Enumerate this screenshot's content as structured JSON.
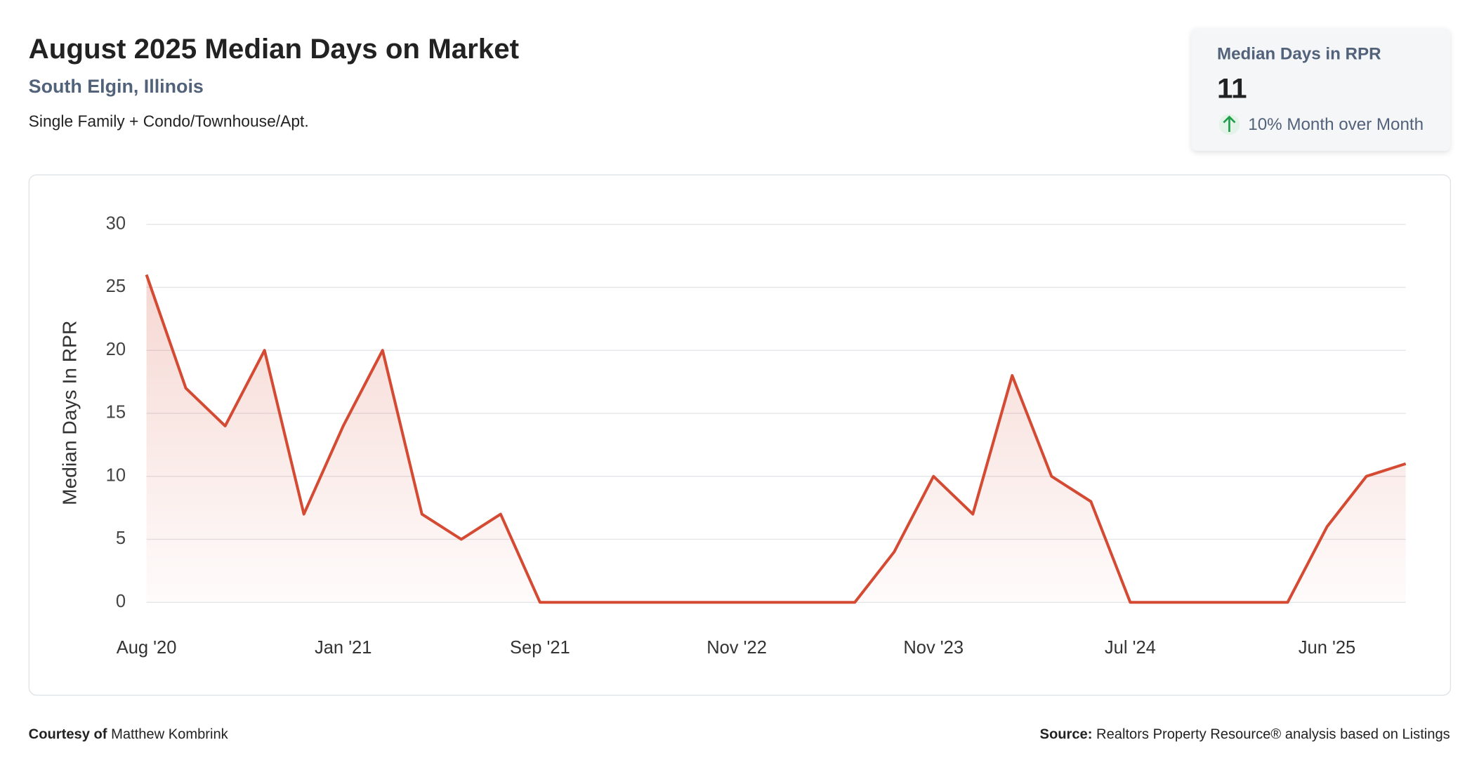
{
  "header": {
    "title": "August 2025 Median Days on Market",
    "location": "South Elgin, Illinois",
    "property_types": "Single Family + Condo/Townhouse/Apt."
  },
  "kpi": {
    "label": "Median Days in RPR",
    "value": "11",
    "change": "10% Month over Month"
  },
  "chart_data": {
    "type": "line",
    "y_label": "Median Days In RPR",
    "categories": [
      "Aug '20",
      null,
      null,
      null,
      null,
      "Jan '21",
      null,
      null,
      null,
      null,
      "Sep '21",
      null,
      null,
      null,
      null,
      "Nov '22",
      null,
      null,
      null,
      null,
      "Nov '23",
      null,
      null,
      null,
      null,
      "Jul '24",
      null,
      null,
      null,
      null,
      "Jun '25",
      null,
      null
    ],
    "series": [
      {
        "name": "Median Days In RPR",
        "color": "#d44a33",
        "values": [
          26,
          17,
          14,
          20,
          7,
          14,
          20,
          7,
          5,
          7,
          0,
          0,
          0,
          0,
          0,
          0,
          0,
          0,
          0,
          4,
          10,
          7,
          18,
          10,
          8,
          0,
          0,
          0,
          0,
          0,
          6,
          10,
          11
        ]
      }
    ],
    "ylim": [
      0,
      30
    ],
    "yticks": [
      0,
      5,
      10,
      15,
      20,
      25,
      30
    ],
    "grid": true
  },
  "footer": {
    "courtesy_label": "Courtesy of",
    "courtesy_name": "Matthew Kombrink",
    "source_label": "Source:",
    "source_text": "Realtors Property Resource® analysis based on Listings"
  }
}
